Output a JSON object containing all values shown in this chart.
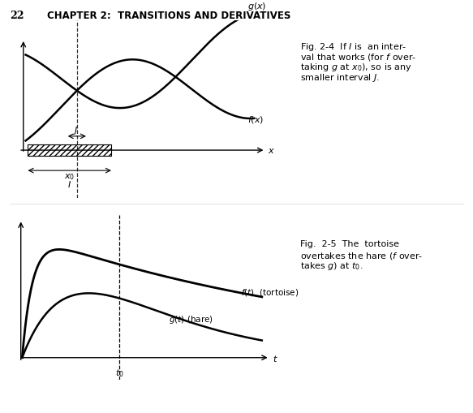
{
  "title_text": "22      CHAPTER 2:  TRANSITIONS AND DERIVATIVES",
  "fig24_caption": "Fig. 2-4  If I is  an inter-\nval that works (for f over-\ntaking g at x₀), so is any\nsmaller interval J.",
  "fig25_caption": "Fig.  2-5  The  tortoise\novertakes the hare (f over-\ntakes g) at t₀.",
  "bg_color": "#ffffff",
  "curve_color": "#000000",
  "hatch_color": "#000000"
}
